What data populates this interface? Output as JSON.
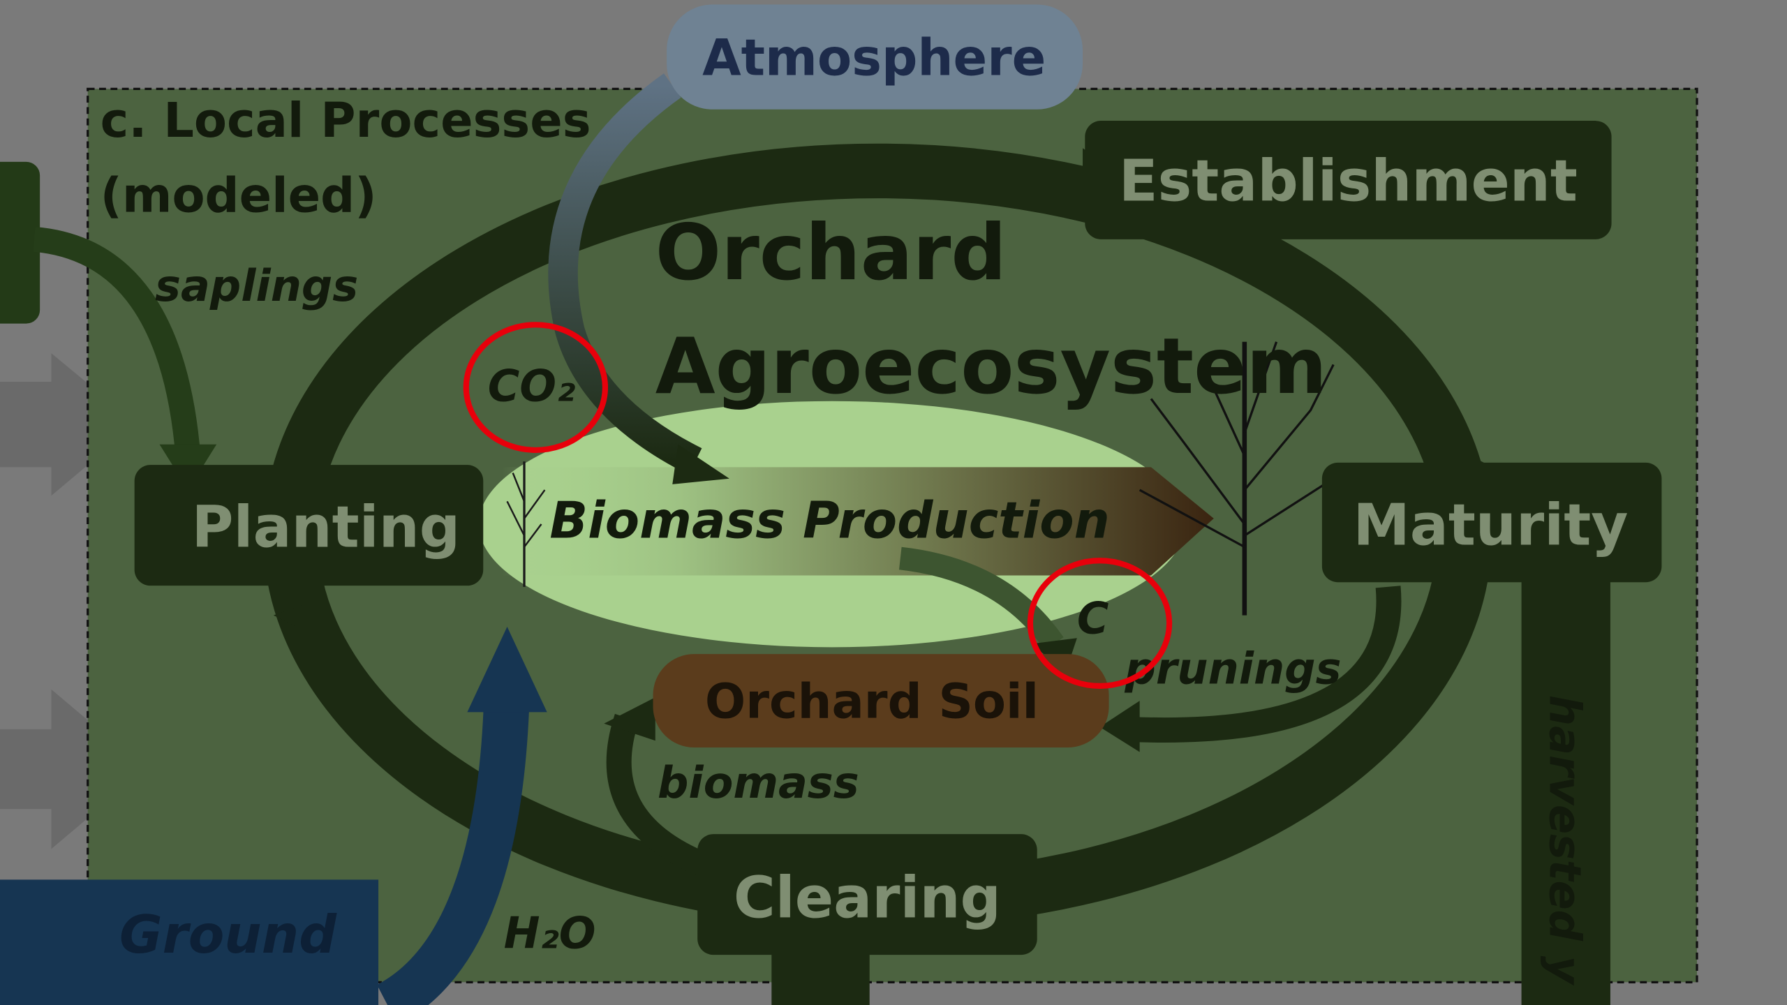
{
  "header": {
    "title_line1": "c. Local Processes",
    "title_line2": "(modeled)"
  },
  "center_title": {
    "line1": "Orchard",
    "line2": "Agroecosystem"
  },
  "nodes": [
    {
      "label": "Atmosphere"
    },
    {
      "label": "Establishment"
    },
    {
      "label": "Planting"
    },
    {
      "label": "Maturity"
    },
    {
      "label": "Biomass Production"
    },
    {
      "label": "Orchard Soil"
    },
    {
      "label": "Clearing"
    },
    {
      "label": "Ground"
    }
  ],
  "flows": [
    {
      "label": "saplings"
    },
    {
      "label": "CO₂"
    },
    {
      "label": "C"
    },
    {
      "label": "prunings"
    },
    {
      "label": "biomass"
    },
    {
      "label": "H₂O"
    },
    {
      "label": "harvested y"
    }
  ]
}
